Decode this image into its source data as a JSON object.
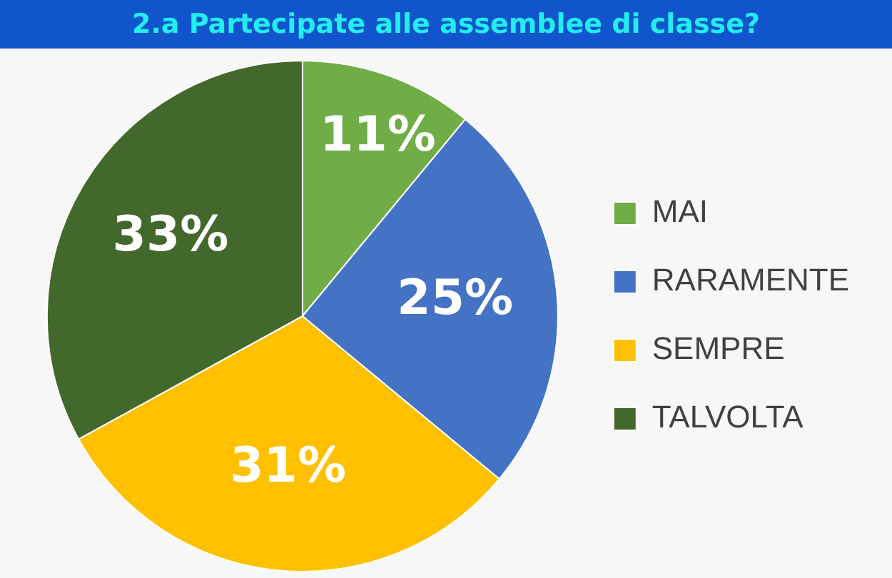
{
  "chart_data": {
    "type": "pie",
    "title": "2.a Partecipate alle assemblee di classe?",
    "categories": [
      "MAI",
      "RARAMENTE",
      "SEMPRE",
      "TALVOLTA"
    ],
    "values": [
      11,
      25,
      31,
      33
    ],
    "value_labels": [
      "11%",
      "25%",
      "31%",
      "33%"
    ],
    "colors": [
      "#70ad47",
      "#4472c4",
      "#ffc000",
      "#43682b"
    ],
    "legend": "right"
  }
}
